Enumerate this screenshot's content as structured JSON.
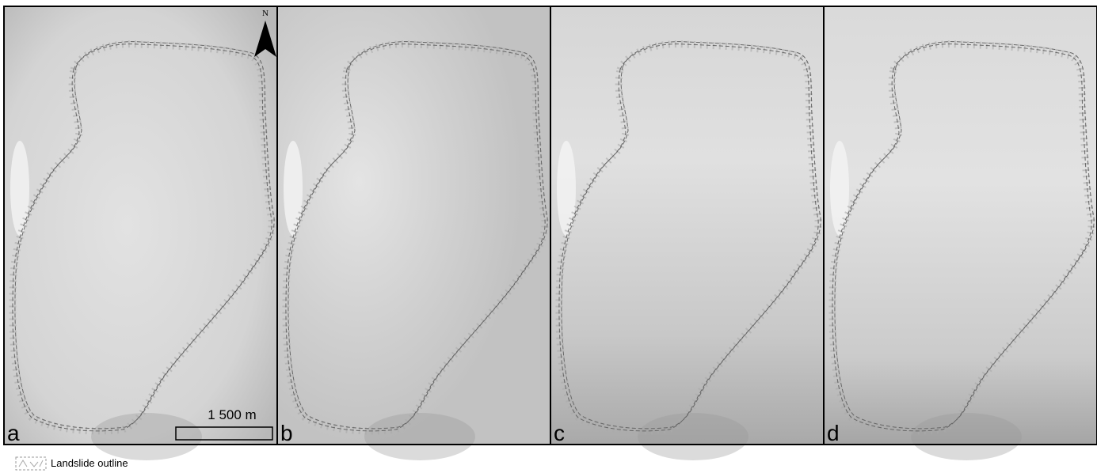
{
  "panels": [
    {
      "label": "a"
    },
    {
      "label": "b"
    },
    {
      "label": "c"
    },
    {
      "label": "d"
    }
  ],
  "north_arrow": {
    "label": "N"
  },
  "scale_bar": {
    "label": "1 500 m"
  },
  "legend": {
    "label": "Landslide outline"
  }
}
